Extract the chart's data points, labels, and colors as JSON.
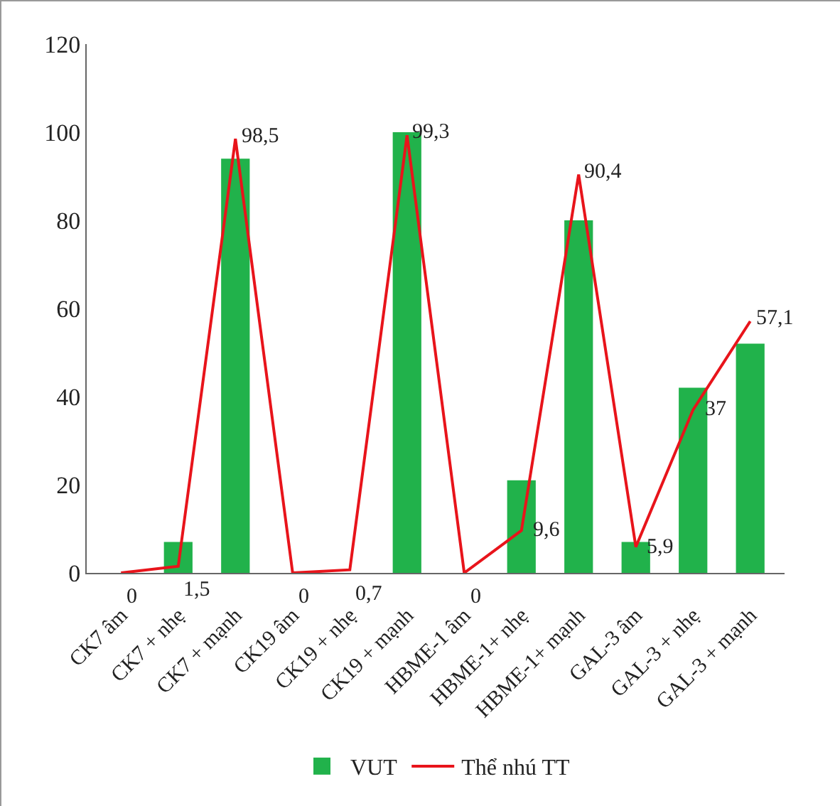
{
  "chart_data": {
    "type": "bar",
    "categories": [
      "CK7 âm",
      "CK7 + nhẹ",
      "CK7 + mạnh",
      "CK19 âm",
      "CK19 + nhẹ",
      "CK19 + mạnh",
      "HBME-1 âm",
      "HBME-1+ nhẹ",
      "HBME-1+ mạnh",
      "GAL-3 âm",
      "GAL-3 + nhẹ",
      "GAL-3 + mạnh"
    ],
    "series": [
      {
        "name": "VUT",
        "color": "#21b24b",
        "values": [
          0,
          7,
          94,
          0,
          0,
          100,
          0,
          21,
          80,
          7,
          42,
          52
        ]
      },
      {
        "name": "Thể nhú TT",
        "type": "line",
        "color": "#e8141b",
        "values": [
          0,
          1.5,
          98.5,
          0,
          0.7,
          99.3,
          0,
          9.6,
          90.4,
          5.9,
          37,
          57.1
        ],
        "value_labels": [
          "0",
          "1,5",
          "98,5",
          "0",
          "0,7",
          "99,3",
          "0",
          "9,6",
          "90,4",
          "5,9",
          "37",
          "57,1"
        ]
      }
    ],
    "ylim": [
      0,
      120
    ],
    "yticks": [
      0,
      20,
      40,
      60,
      80,
      100,
      120
    ],
    "grid": false,
    "legend": "bottom",
    "marker": "none",
    "line_style": "solid"
  }
}
